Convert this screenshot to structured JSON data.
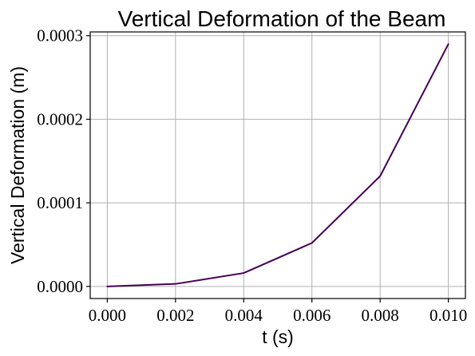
{
  "chart_data": {
    "type": "line",
    "title": "Vertical Deformation of the Beam",
    "xlabel": "t (s)",
    "ylabel": "Vertical Deformation (m)",
    "x": [
      0.0,
      0.002,
      0.004,
      0.006,
      0.008,
      0.01
    ],
    "series": [
      {
        "values": [
          0.0,
          3e-06,
          1.6e-05,
          5.2e-05,
          0.000132,
          0.00029
        ],
        "color": "#440154"
      }
    ],
    "xlim": [
      -0.0005,
      0.0105
    ],
    "ylim": [
      -1.45e-05,
      0.0003045
    ],
    "x_ticks": [
      "0.000",
      "0.002",
      "0.004",
      "0.006",
      "0.008",
      "0.010"
    ],
    "y_ticks": [
      "0.0000",
      "0.0001",
      "0.0002",
      "0.0003"
    ],
    "grid": true
  }
}
